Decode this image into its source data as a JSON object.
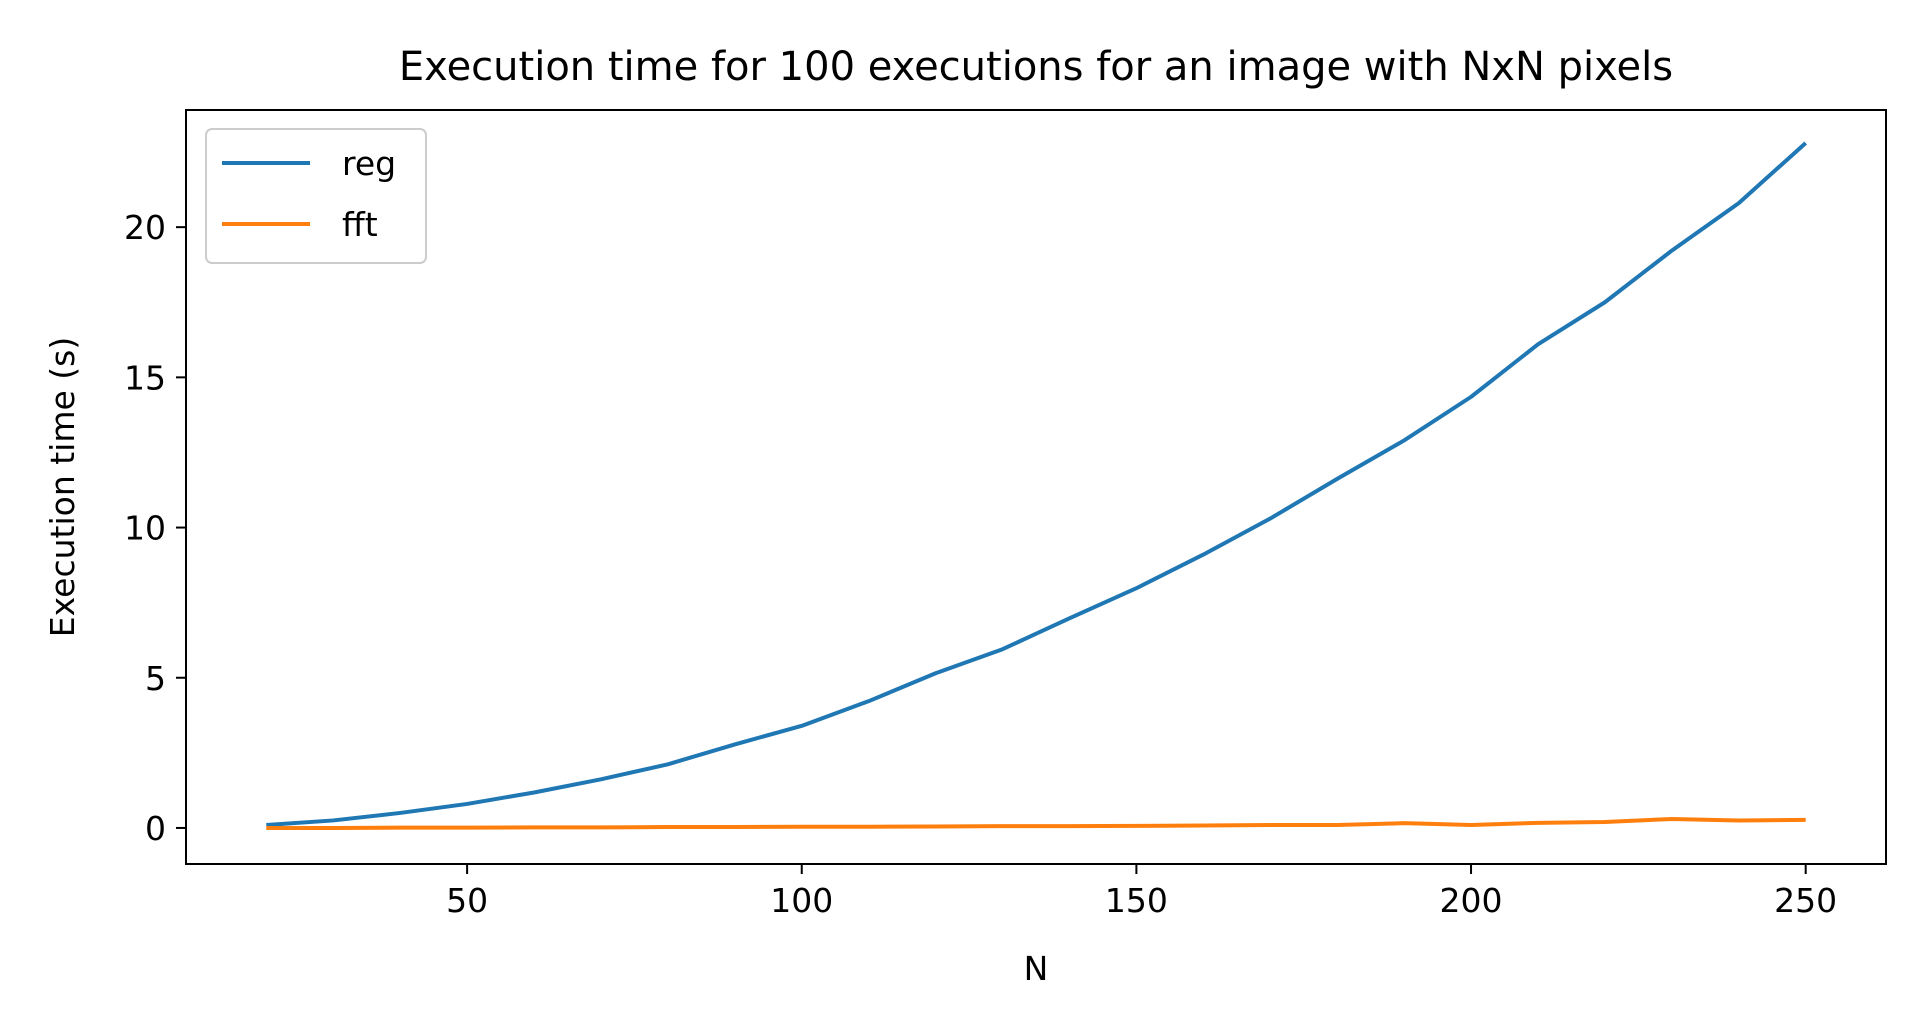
{
  "chart_data": {
    "type": "line",
    "title": "Execution time for 100 executions for an image with NxN pixels",
    "xlabel": "N",
    "ylabel": "Execution time (s)",
    "xlim": [
      8,
      262
    ],
    "ylim": [
      -1.2,
      23.9
    ],
    "xticks": [
      50,
      100,
      150,
      200,
      250
    ],
    "yticks": [
      0,
      5,
      10,
      15,
      20
    ],
    "grid": false,
    "legend_position": "upper left",
    "x": [
      20,
      30,
      40,
      50,
      60,
      70,
      80,
      90,
      100,
      110,
      120,
      130,
      140,
      150,
      160,
      170,
      180,
      190,
      200,
      210,
      220,
      230,
      240,
      250
    ],
    "series": [
      {
        "name": "reg",
        "color": "#1f77b4",
        "values": [
          0.1,
          0.25,
          0.5,
          0.8,
          1.18,
          1.62,
          2.12,
          2.78,
          3.4,
          4.22,
          5.15,
          5.95,
          6.98,
          7.98,
          9.1,
          10.3,
          11.62,
          12.9,
          14.35,
          16.1,
          17.5,
          19.22,
          20.8,
          22.8
        ]
      },
      {
        "name": "fft",
        "color": "#ff7f0e",
        "values": [
          0.0,
          0.0,
          0.01,
          0.01,
          0.02,
          0.02,
          0.03,
          0.03,
          0.04,
          0.04,
          0.05,
          0.06,
          0.06,
          0.07,
          0.08,
          0.1,
          0.1,
          0.16,
          0.1,
          0.17,
          0.2,
          0.3,
          0.25,
          0.27
        ]
      }
    ]
  }
}
